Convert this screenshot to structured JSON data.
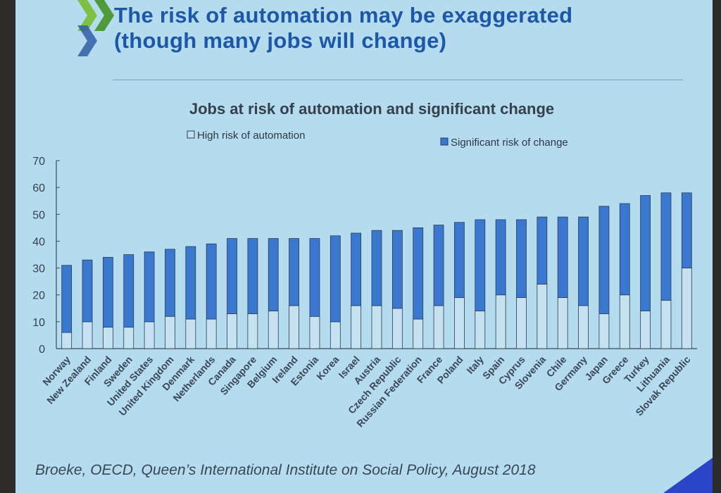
{
  "slide": {
    "title_line1": "The risk of automation may be exaggerated",
    "title_line2": "(though many jobs will change)",
    "source": "Broeke, OECD, Queen’s International Institute on Social Policy, August 2018",
    "accent_color": "#1c57a8",
    "background_color": "#b4dcee"
  },
  "chart_data": {
    "type": "bar",
    "stacked": true,
    "title": "Jobs at risk of automation and significant change",
    "xlabel": "",
    "ylabel": "",
    "ylim": [
      0,
      70
    ],
    "yticks": [
      0,
      10,
      20,
      30,
      40,
      50,
      60,
      70
    ],
    "grid": false,
    "legend_position": "top",
    "categories": [
      "Norway",
      "New Zealand",
      "Finland",
      "Sweden",
      "United States",
      "United Kingdom",
      "Denmark",
      "Netherlands",
      "Canada",
      "Singapore",
      "Belgium",
      "Ireland",
      "Estonia",
      "Korea",
      "Israel",
      "Austria",
      "Czech Republic",
      "Russian Federation",
      "France",
      "Poland",
      "Italy",
      "Spain",
      "Cyprus",
      "Slovenia",
      "Chile",
      "Germany",
      "Japan",
      "Greece",
      "Turkey",
      "Lithuania",
      "Slovak Republic"
    ],
    "series": [
      {
        "name": "High risk of automation",
        "color": "#c6e2f0",
        "values": [
          6,
          10,
          8,
          8,
          10,
          12,
          11,
          11,
          13,
          13,
          14,
          16,
          12,
          10,
          16,
          16,
          15,
          11,
          16,
          19,
          14,
          20,
          19,
          24,
          19,
          16,
          13,
          20,
          14,
          18,
          30
        ]
      },
      {
        "name": "Significant risk of change",
        "color": "#3a78d0",
        "values": [
          25,
          23,
          26,
          27,
          26,
          25,
          27,
          28,
          28,
          28,
          27,
          25,
          29,
          32,
          27,
          28,
          29,
          34,
          30,
          28,
          34,
          28,
          29,
          25,
          30,
          33,
          40,
          34,
          43,
          40,
          28
        ]
      }
    ]
  }
}
